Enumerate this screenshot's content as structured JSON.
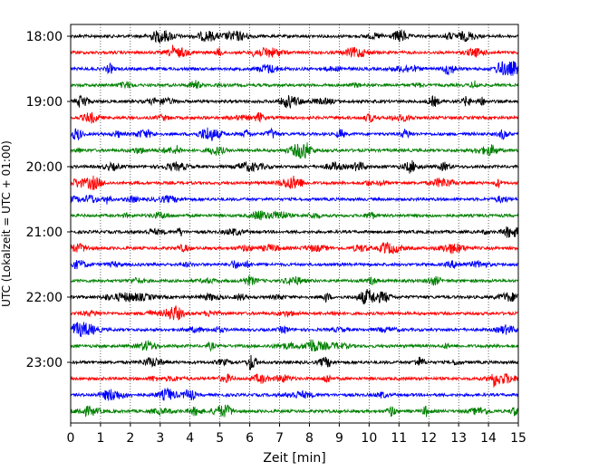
{
  "chart_data": {
    "type": "line",
    "title": "",
    "xlabel": "Zeit  [min]",
    "ylabel": "UTC (Lokalzeit = UTC + 01:00)",
    "xlim": [
      0,
      15
    ],
    "x_ticks": [
      0,
      1,
      2,
      3,
      4,
      5,
      6,
      7,
      8,
      9,
      10,
      11,
      12,
      13,
      14,
      15
    ],
    "x_tick_labels": [
      "0",
      "1",
      "2",
      "3",
      "4",
      "5",
      "6",
      "7",
      "8",
      "9",
      "10",
      "11",
      "12",
      "13",
      "14",
      "15"
    ],
    "y_ticks": [
      "18:00",
      "19:00",
      "20:00",
      "21:00",
      "22:00",
      "23:00"
    ],
    "grid": "vertical-dotted",
    "trace_colors": [
      "#000000",
      "#ff0000",
      "#0000ff",
      "#008000"
    ],
    "traces": [
      {
        "start": "18:00",
        "color": "#000000"
      },
      {
        "start": "18:15",
        "color": "#ff0000"
      },
      {
        "start": "18:30",
        "color": "#0000ff"
      },
      {
        "start": "18:45",
        "color": "#008000"
      },
      {
        "start": "19:00",
        "color": "#000000"
      },
      {
        "start": "19:15",
        "color": "#ff0000"
      },
      {
        "start": "19:30",
        "color": "#0000ff"
      },
      {
        "start": "19:45",
        "color": "#008000"
      },
      {
        "start": "20:00",
        "color": "#000000"
      },
      {
        "start": "20:15",
        "color": "#ff0000"
      },
      {
        "start": "20:30",
        "color": "#0000ff"
      },
      {
        "start": "20:45",
        "color": "#008000"
      },
      {
        "start": "21:00",
        "color": "#000000"
      },
      {
        "start": "21:15",
        "color": "#ff0000"
      },
      {
        "start": "21:30",
        "color": "#0000ff"
      },
      {
        "start": "21:45",
        "color": "#008000"
      },
      {
        "start": "22:00",
        "color": "#000000"
      },
      {
        "start": "22:15",
        "color": "#ff0000"
      },
      {
        "start": "22:30",
        "color": "#0000ff"
      },
      {
        "start": "22:45",
        "color": "#008000"
      },
      {
        "start": "23:00",
        "color": "#000000"
      },
      {
        "start": "23:15",
        "color": "#ff0000"
      },
      {
        "start": "23:30",
        "color": "#0000ff"
      },
      {
        "start": "23:45",
        "color": "#008000"
      }
    ]
  }
}
